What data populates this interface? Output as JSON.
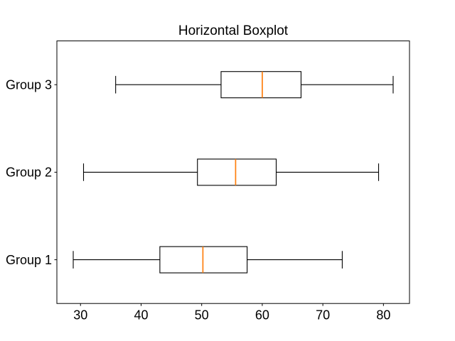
{
  "figure": {
    "background": "#ffffff"
  },
  "chart_data": {
    "type": "boxplot",
    "orientation": "horizontal",
    "title": "Horizontal Boxplot",
    "categories": [
      "Group 1",
      "Group 2",
      "Group 3"
    ],
    "series": [
      {
        "name": "Group 1",
        "position": 1,
        "whisker_low": 28.8,
        "q1": 43.1,
        "median": 50.2,
        "q3": 57.5,
        "whisker_high": 73.2
      },
      {
        "name": "Group 2",
        "position": 2,
        "whisker_low": 30.5,
        "q1": 49.3,
        "median": 55.6,
        "q3": 62.3,
        "whisker_high": 79.2
      },
      {
        "name": "Group 3",
        "position": 3,
        "whisker_low": 35.8,
        "q1": 53.2,
        "median": 60.0,
        "q3": 66.4,
        "whisker_high": 81.6
      }
    ],
    "x_ticks": [
      30,
      40,
      50,
      60,
      70,
      80
    ],
    "xlim": [
      26.1,
      84.3
    ],
    "ylim": [
      0.5,
      3.5
    ],
    "grid": false,
    "legend": false,
    "box_width": 0.3,
    "cap_width": 0.2,
    "colors": {
      "line": "#000000",
      "median_line": "#ff7f0e",
      "box_fill": "#ffffff",
      "background": "#ffffff"
    }
  }
}
